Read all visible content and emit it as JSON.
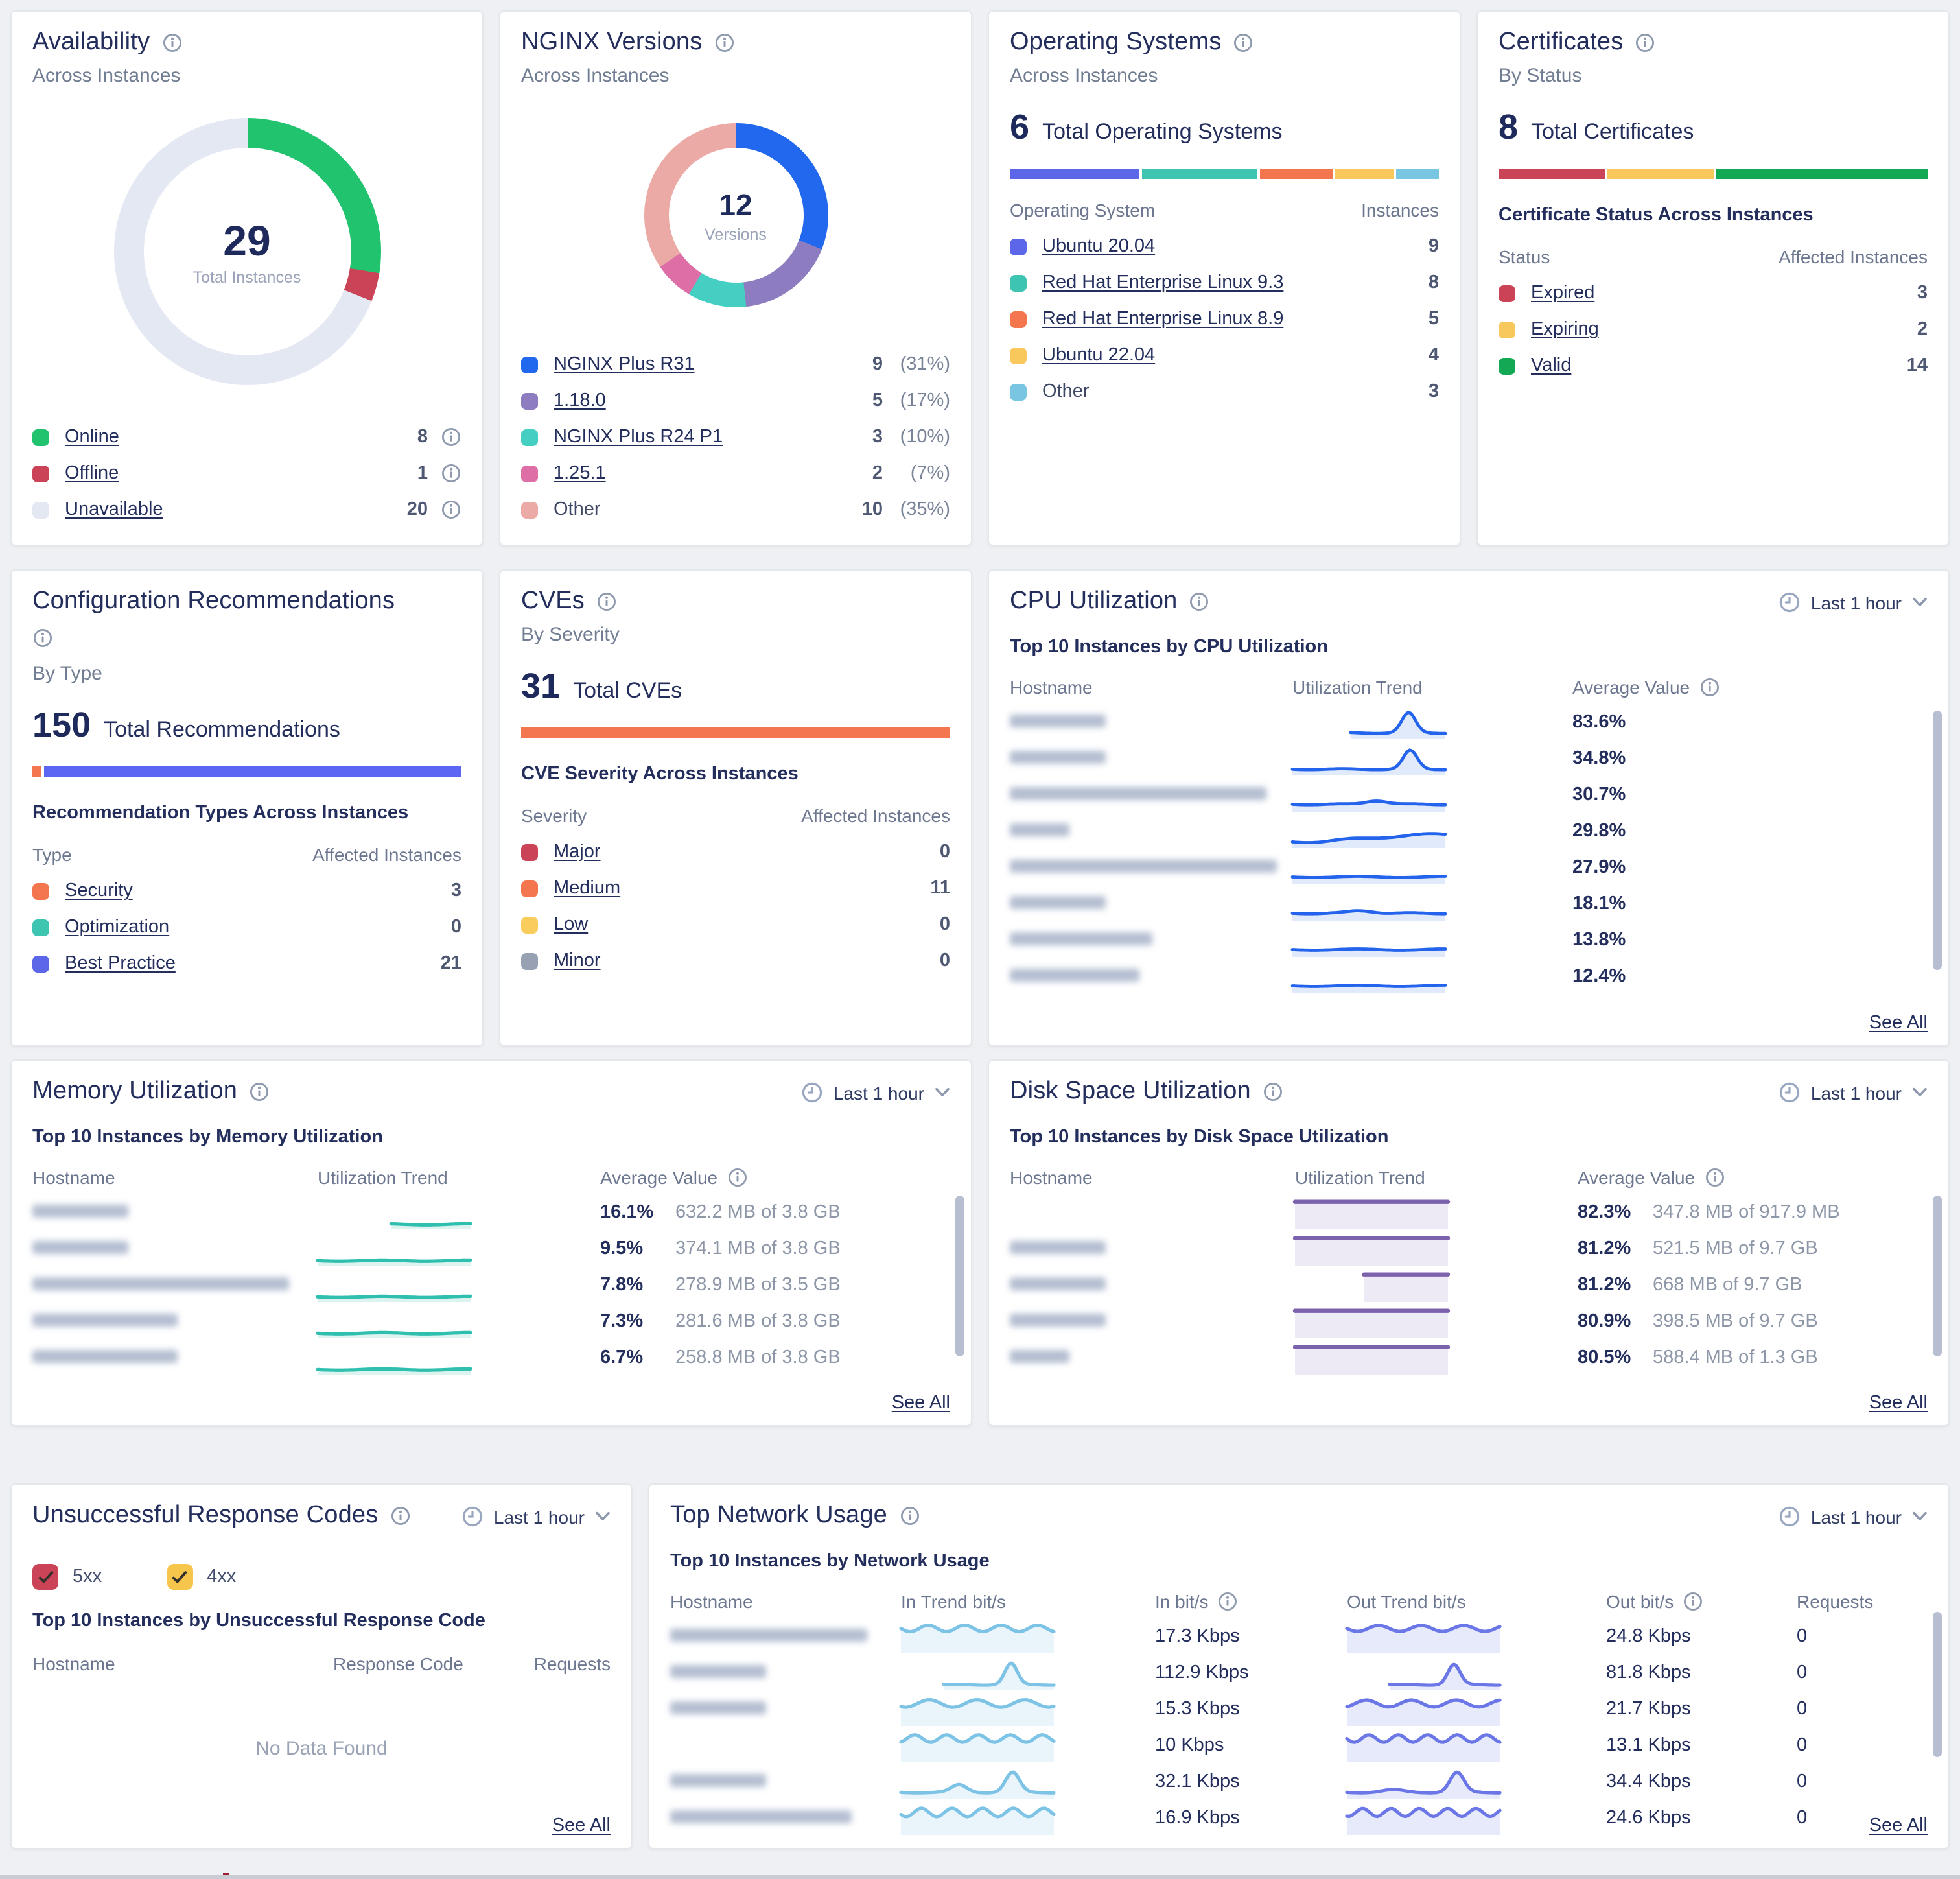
{
  "cards": {
    "availability": {
      "title": "Availability",
      "subtitle": "Across Instances",
      "donut": {
        "total": "29",
        "total_label": "Total Instances"
      },
      "segments": [
        {
          "label": "Online",
          "value": "8",
          "color": "#21c36f",
          "link": true
        },
        {
          "label": "Offline",
          "value": "1",
          "color": "#cb4357",
          "link": true
        },
        {
          "label": "Unavailable",
          "value": "20",
          "color": "#e3e8f3",
          "link": true
        }
      ]
    },
    "nginx_versions": {
      "title": "NGINX Versions",
      "subtitle": "Across Instances",
      "donut": {
        "total": "12",
        "total_label": "Versions"
      },
      "segments": [
        {
          "label": "NGINX Plus R31",
          "value": "9",
          "pct": "(31%)",
          "color": "#2168ee",
          "link": true
        },
        {
          "label": "1.18.0",
          "value": "5",
          "pct": "(17%)",
          "color": "#8e7cc0",
          "link": true
        },
        {
          "label": "NGINX Plus R24 P1",
          "value": "3",
          "pct": "(10%)",
          "color": "#45cfc2",
          "link": true
        },
        {
          "label": "1.25.1",
          "value": "2",
          "pct": "(7%)",
          "color": "#dd6ea6",
          "link": true
        },
        {
          "label": "Other",
          "value": "10",
          "pct": "(35%)",
          "color": "#ecaaa6",
          "link": false
        }
      ]
    },
    "operating_systems": {
      "title": "Operating Systems",
      "subtitle": "Across Instances",
      "stat": {
        "value": "6",
        "label": "Total Operating Systems"
      },
      "cols": [
        "Operating System",
        "Instances"
      ],
      "rows": [
        {
          "label": "Ubuntu 20.04",
          "value": "9",
          "color": "#5b66e9",
          "link": true,
          "w": 9
        },
        {
          "label": "Red Hat Enterprise Linux 9.3",
          "value": "8",
          "color": "#3dc5b2",
          "link": true,
          "w": 8
        },
        {
          "label": "Red Hat Enterprise Linux 8.9",
          "value": "5",
          "color": "#f4764e",
          "link": true,
          "w": 5
        },
        {
          "label": "Ubuntu 22.04",
          "value": "4",
          "color": "#f8c85c",
          "link": true,
          "w": 4
        },
        {
          "label": "Other",
          "value": "3",
          "color": "#79c6e3",
          "link": false,
          "w": 3
        }
      ]
    },
    "certificates": {
      "title": "Certificates",
      "subtitle": "By Status",
      "stat": {
        "value": "8",
        "label": "Total Certificates"
      },
      "section": "Certificate Status Across Instances",
      "cols": [
        "Status",
        "Affected Instances"
      ],
      "bar": [
        {
          "color": "#cb4357",
          "w": 1
        },
        {
          "color": "#f8c85c",
          "w": 1
        },
        {
          "color": "#12a854",
          "w": 2
        }
      ],
      "rows": [
        {
          "label": "Expired",
          "value": "3",
          "color": "#cb4357",
          "link": true
        },
        {
          "label": "Expiring",
          "value": "2",
          "color": "#f8c85c",
          "link": true
        },
        {
          "label": "Valid",
          "value": "14",
          "color": "#12a854",
          "link": true
        }
      ]
    },
    "config_recommendations": {
      "title": "Configuration Recommendations",
      "subtitle": "By Type",
      "stat": {
        "value": "150",
        "label": "Total Recommendations"
      },
      "section": "Recommendation Types Across Instances",
      "cols": [
        "Type",
        "Affected Instances"
      ],
      "bar": [
        {
          "color": "#f4764e",
          "w": 0.02
        },
        {
          "color": "#5d66f2",
          "w": 0.98
        }
      ],
      "rows": [
        {
          "label": "Security",
          "value": "3",
          "color": "#f4764e",
          "link": true
        },
        {
          "label": "Optimization",
          "value": "0",
          "color": "#3dc5b2",
          "link": true
        },
        {
          "label": "Best Practice",
          "value": "21",
          "color": "#5b66e9",
          "link": true
        }
      ]
    },
    "cves": {
      "title": "CVEs",
      "subtitle": "By Severity",
      "stat": {
        "value": "31",
        "label": "Total CVEs"
      },
      "section": "CVE Severity Across Instances",
      "cols": [
        "Severity",
        "Affected Instances"
      ],
      "bar": [
        {
          "color": "#f4764e",
          "w": 1
        }
      ],
      "rows": [
        {
          "label": "Major",
          "value": "0",
          "color": "#cb4357",
          "link": true
        },
        {
          "label": "Medium",
          "value": "11",
          "color": "#f4764e",
          "link": true
        },
        {
          "label": "Low",
          "value": "0",
          "color": "#f8cd5c",
          "link": true
        },
        {
          "label": "Minor",
          "value": "0",
          "color": "#98a1b3",
          "link": true
        }
      ]
    },
    "cpu": {
      "title": "CPU Utilization",
      "timerange": "Last 1 hour",
      "list_title": "Top 10 Instances by CPU Utilization",
      "cols": [
        "Hostname",
        "Utilization Trend",
        "Average Value"
      ],
      "line": "#2463eb",
      "fill": "#c7d9f8",
      "rows": [
        {
          "mask": 74,
          "value": "83.6%",
          "shape": {
            "type": "peak",
            "start": 38,
            "base": 21,
            "peaks": [
              {
                "p": 76,
                "h": 16,
                "s": 4.5
              }
            ]
          }
        },
        {
          "mask": 74,
          "value": "34.8%",
          "shape": {
            "type": "peak",
            "start": 0,
            "base": 21,
            "peaks": [
              {
                "p": 77,
                "h": 15,
                "s": 4.5
              }
            ]
          }
        },
        {
          "mask": 198,
          "value": "30.7%",
          "shape": {
            "type": "peak",
            "start": 0,
            "base": 20,
            "peaks": [
              {
                "p": 55,
                "h": 3,
                "s": 7
              }
            ]
          }
        },
        {
          "mask": 46,
          "value": "29.8%",
          "shape": {
            "type": "rise",
            "h": 6
          }
        },
        {
          "mask": 206,
          "value": "27.9%",
          "shape": {
            "type": "flat",
            "base": 20
          }
        },
        {
          "mask": 74,
          "value": "18.1%",
          "shape": {
            "type": "peak",
            "start": 0,
            "base": 20,
            "peaks": [
              {
                "p": 45,
                "h": 2,
                "s": 8
              }
            ]
          }
        },
        {
          "mask": 110,
          "value": "13.8%",
          "shape": {
            "type": "flat",
            "base": 20
          }
        },
        {
          "mask": 100,
          "value": "12.4%",
          "partial": true,
          "shape": {
            "type": "flat",
            "base": 20
          }
        }
      ],
      "see_all": "See All"
    },
    "memory": {
      "title": "Memory Utilization",
      "timerange": "Last 1 hour",
      "list_title": "Top 10 Instances by Memory Utilization",
      "cols": [
        "Hostname",
        "Utilization Trend",
        "Average Value"
      ],
      "line": "#2ebfae",
      "fill": "#bfe9e3",
      "rows": [
        {
          "mask": 74,
          "value": "16.1%",
          "detail": "632.2 MB of 3.8 GB",
          "shape": {
            "type": "flat",
            "base": 22,
            "start": 48
          }
        },
        {
          "mask": 74,
          "value": "9.5%",
          "detail": "374.1 MB of 3.8 GB",
          "shape": {
            "type": "flat",
            "base": 22
          }
        },
        {
          "mask": 198,
          "value": "7.8%",
          "detail": "278.9 MB of 3.5 GB",
          "shape": {
            "type": "flat",
            "base": 22
          }
        },
        {
          "mask": 112,
          "value": "7.3%",
          "detail": "281.6 MB of 3.8 GB",
          "shape": {
            "type": "flat",
            "base": 22
          }
        },
        {
          "mask": 112,
          "value": "6.7%",
          "detail": "258.8 MB of 3.8 GB",
          "shape": {
            "type": "flat",
            "base": 22
          }
        }
      ],
      "see_all": "See All"
    },
    "disk": {
      "title": "Disk Space Utilization",
      "timerange": "Last 1 hour",
      "list_title": "Top 10 Instances by Disk Space Utilization",
      "cols": [
        "Hostname",
        "Utilization Trend",
        "Average Value"
      ],
      "line": "#7c62ad",
      "fill": "#ded8ee",
      "rows": [
        {
          "mask": 0,
          "value": "82.3%",
          "detail": "347.8 MB of 917.9 MB",
          "shape": {
            "type": "bar",
            "base": 4
          }
        },
        {
          "mask": 74,
          "value": "81.2%",
          "detail": "521.5 MB of 9.7 GB",
          "shape": {
            "type": "bar",
            "base": 4
          }
        },
        {
          "mask": 74,
          "value": "81.2%",
          "detail": "668 MB of 9.7 GB",
          "shape": {
            "type": "bar",
            "base": 4,
            "start": 45
          }
        },
        {
          "mask": 74,
          "value": "80.9%",
          "detail": "398.5 MB of 9.7 GB",
          "shape": {
            "type": "bar",
            "base": 4
          }
        },
        {
          "mask": 46,
          "value": "80.5%",
          "detail": "588.4 MB of 1.3 GB",
          "shape": {
            "type": "bar",
            "base": 4
          }
        }
      ],
      "see_all": "See All"
    },
    "response_codes": {
      "title": "Unsuccessful Response Codes",
      "timerange": "Last 1 hour",
      "filters": [
        {
          "label": "5xx",
          "color": "#cb4357",
          "checked": true
        },
        {
          "label": "4xx",
          "color": "#f6c64c",
          "checked": true
        }
      ],
      "list_title": "Top 10 Instances by Unsuccessful Response Code",
      "cols": [
        "Hostname",
        "Response Code",
        "Requests"
      ],
      "empty": "No Data Found",
      "see_all": "See All"
    },
    "network": {
      "title": "Top Network Usage",
      "timerange": "Last 1 hour",
      "list_title": "Top 10 Instances by Network Usage",
      "cols": [
        "Hostname",
        "In Trend bit/s",
        "In bit/s",
        "Out Trend bit/s",
        "Out bit/s",
        "Requests"
      ],
      "line_in": "#7cc3e6",
      "fill_in": "#d9edf7",
      "line_out": "#6b77e6",
      "fill_out": "#d4d8f8",
      "rows": [
        {
          "mask": 152,
          "in": "17.3 Kbps",
          "out": "24.8 Kbps",
          "req": "0",
          "in_shape": {
            "type": "wave",
            "base": 6,
            "amp": 2.6,
            "cycles": 4.2
          },
          "out_shape": {
            "type": "wave",
            "base": 6,
            "amp": 2.4,
            "cycles": 3.6
          }
        },
        {
          "mask": 74,
          "in": "112.9 Kbps",
          "out": "81.8 Kbps",
          "req": "0",
          "in_shape": {
            "type": "peak",
            "start": 28,
            "base": 22,
            "peaks": [
              {
                "p": 72,
                "h": 17,
                "s": 4
              }
            ]
          },
          "out_shape": {
            "type": "peak",
            "start": 28,
            "base": 22,
            "peaks": [
              {
                "p": 70,
                "h": 16,
                "s": 4
              }
            ]
          }
        },
        {
          "mask": 74,
          "in": "15.3 Kbps",
          "out": "21.7 Kbps",
          "req": "0",
          "in_shape": {
            "type": "wave",
            "base": 8,
            "amp": 3,
            "cycles": 3.2,
            "phase": 1
          },
          "out_shape": {
            "type": "wave",
            "base": 8,
            "amp": 2.8,
            "cycles": 3.4,
            "phase": 2
          }
        },
        {
          "mask": 0,
          "in": "10 Kbps",
          "out": "13.1 Kbps",
          "req": "0",
          "in_shape": {
            "type": "wave",
            "base": 7,
            "amp": 3,
            "cycles": 4.8,
            "phase": 2
          },
          "out_shape": {
            "type": "wave",
            "base": 7,
            "amp": 3,
            "cycles": 5.2
          }
        },
        {
          "mask": 74,
          "in": "32.1 Kbps",
          "out": "34.4 Kbps",
          "req": "0",
          "in_shape": {
            "type": "peak",
            "base": 21,
            "peaks": [
              {
                "p": 38,
                "h": 6,
                "s": 5
              },
              {
                "p": 73,
                "h": 16,
                "s": 4.5
              }
            ]
          },
          "out_shape": {
            "type": "peak",
            "base": 21,
            "peaks": [
              {
                "p": 30,
                "h": 2,
                "s": 7
              },
              {
                "p": 72,
                "h": 16,
                "s": 4.5
              }
            ]
          }
        },
        {
          "mask": 140,
          "in": "16.9 Kbps",
          "out": "24.6 Kbps",
          "req": "0",
          "partial": true,
          "in_shape": {
            "type": "wave",
            "base": 8,
            "amp": 3.4,
            "cycles": 5,
            "phase": 0.5
          },
          "out_shape": {
            "type": "wave",
            "base": 8,
            "amp": 3.2,
            "cycles": 5.4,
            "phase": 1.2
          }
        }
      ],
      "see_all": "See All"
    }
  }
}
